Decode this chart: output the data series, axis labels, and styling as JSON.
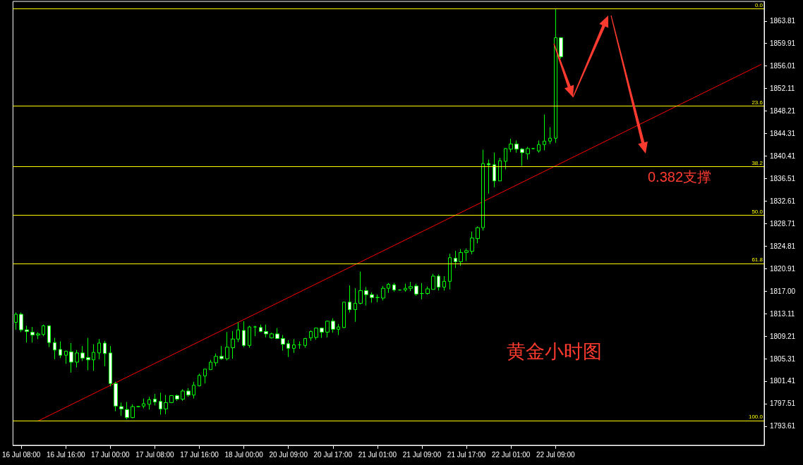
{
  "chart_data": {
    "type": "candlestick",
    "categories": [
      null,
      "16 Jul 08:00",
      null,
      null,
      null,
      null,
      null,
      null,
      null,
      "16 Jul 16:00",
      null,
      null,
      null,
      null,
      null,
      null,
      null,
      "17 Jul 00:00",
      null,
      null,
      null,
      null,
      null,
      null,
      null,
      "17 Jul 08:00",
      null,
      null,
      null,
      null,
      null,
      null,
      null,
      "17 Jul 16:00",
      null,
      null,
      null,
      null,
      null,
      null,
      null,
      "18 Jul 00:00",
      null,
      null,
      null,
      null,
      null,
      null,
      null,
      "20 Jul 09:00",
      null,
      null,
      null,
      null,
      null,
      null,
      null,
      "20 Jul 17:00",
      null,
      null,
      null,
      null,
      null,
      null,
      null,
      "21 Jul 01:00",
      null,
      null,
      null,
      null,
      null,
      null,
      null,
      "21 Jul 09:00",
      null,
      null,
      null,
      null,
      null,
      null,
      null,
      "21 Jul 17:00",
      null,
      null,
      null,
      null,
      null,
      null,
      null,
      "22 Jul 01:00",
      null,
      null,
      null,
      null,
      null,
      null,
      null,
      "22 Jul 09:00",
      null,
      null,
      null,
      null,
      null,
      null,
      null,
      null,
      null,
      null,
      null,
      null,
      null,
      null,
      null,
      null,
      null,
      null,
      null,
      null,
      null,
      null,
      null,
      null,
      null,
      null,
      null,
      null,
      null,
      null,
      null,
      null,
      null,
      null,
      null,
      null,
      null
    ],
    "series": [
      {
        "type": "candlestick",
        "color": "#00ff00",
        "ohlc": [
          [
            1811.6,
            1813.3,
            1810.3,
            1813.0
          ],
          [
            1813.0,
            1813.3,
            1809.9,
            1810.3
          ],
          [
            1810.3,
            1811.0,
            1808.1,
            1810.0
          ],
          [
            1809.9,
            1810.8,
            1808.1,
            1809.4
          ],
          [
            1809.4,
            1809.9,
            1808.7,
            1809.6
          ],
          [
            1809.5,
            1811.2,
            1809.2,
            1811.0
          ],
          [
            1811.0,
            1811.1,
            1807.3,
            1808.1
          ],
          [
            1808.1,
            1808.9,
            1805.2,
            1806.8
          ],
          [
            1806.9,
            1808.3,
            1805.4,
            1805.9
          ],
          [
            1805.9,
            1806.7,
            1804.4,
            1806.6
          ],
          [
            1806.5,
            1808.0,
            1802.9,
            1804.7
          ],
          [
            1804.7,
            1806.8,
            1803.8,
            1806.3
          ],
          [
            1806.3,
            1807.5,
            1804.9,
            1805.4
          ],
          [
            1805.5,
            1808.9,
            1803.3,
            1805.1
          ],
          [
            1805.1,
            1807.8,
            1803.2,
            1806.4
          ],
          [
            1806.3,
            1808.7,
            1805.2,
            1808.0
          ],
          [
            1808.0,
            1808.4,
            1804.0,
            1806.2
          ],
          [
            1806.3,
            1807.5,
            1800.5,
            1801.0
          ],
          [
            1801.0,
            1801.3,
            1796.2,
            1797.1
          ],
          [
            1797.0,
            1797.7,
            1795.4,
            1796.6
          ],
          [
            1796.5,
            1797.8,
            1794.8,
            1795.1
          ],
          [
            1795.1,
            1797.4,
            1795.0,
            1797.0
          ],
          [
            1797.0,
            1797.1,
            1796.9,
            1797.0
          ],
          [
            1797.1,
            1798.4,
            1796.7,
            1797.5
          ],
          [
            1797.4,
            1798.7,
            1796.5,
            1798.2
          ],
          [
            1798.3,
            1799.2,
            1797.2,
            1797.8
          ],
          [
            1797.9,
            1799.4,
            1795.6,
            1796.6
          ],
          [
            1796.6,
            1799.0,
            1795.7,
            1797.7
          ],
          [
            1797.7,
            1799.0,
            1797.6,
            1798.9
          ],
          [
            1798.9,
            1799.1,
            1798.0,
            1798.3
          ],
          [
            1798.3,
            1800.0,
            1798.0,
            1799.7
          ],
          [
            1799.7,
            1800.2,
            1798.7,
            1799.0
          ],
          [
            1799.0,
            1801.3,
            1798.4,
            1800.7
          ],
          [
            1800.6,
            1802.7,
            1800.5,
            1802.4
          ],
          [
            1802.3,
            1803.5,
            1801.0,
            1803.5
          ],
          [
            1803.4,
            1805.1,
            1803.4,
            1804.7
          ],
          [
            1804.6,
            1806.2,
            1804.0,
            1805.7
          ],
          [
            1805.7,
            1807.5,
            1805.1,
            1805.3
          ],
          [
            1805.3,
            1809.9,
            1805.0,
            1807.3
          ],
          [
            1807.2,
            1810.1,
            1805.3,
            1808.7
          ],
          [
            1808.7,
            1811.6,
            1808.2,
            1810.3
          ],
          [
            1810.2,
            1811.8,
            1807.3,
            1807.6
          ],
          [
            1807.6,
            1811.0,
            1807.2,
            1810.8
          ],
          [
            1810.8,
            1811.0,
            1809.2,
            1810.8
          ],
          [
            1810.7,
            1811.2,
            1809.9,
            1810.0
          ],
          [
            1810.0,
            1811.2,
            1809.0,
            1809.6
          ],
          [
            1808.9,
            1809.8,
            1808.8,
            1809.6
          ],
          [
            1809.6,
            1810.6,
            1808.7,
            1808.8
          ],
          [
            1808.8,
            1809.4,
            1806.7,
            1807.8
          ],
          [
            1807.9,
            1808.5,
            1805.6,
            1807.1
          ],
          [
            1807.1,
            1808.7,
            1806.3,
            1807.7
          ],
          [
            1807.7,
            1808.3,
            1807.0,
            1807.7
          ],
          [
            1807.6,
            1808.9,
            1807.2,
            1808.8
          ],
          [
            1808.9,
            1810.2,
            1808.4,
            1810.0
          ],
          [
            1809.0,
            1810.7,
            1808.6,
            1810.6
          ],
          [
            1810.6,
            1810.7,
            1808.9,
            1809.9
          ],
          [
            1809.9,
            1811.9,
            1809.0,
            1811.8
          ],
          [
            1811.8,
            1812.3,
            1809.8,
            1810.4
          ],
          [
            1810.4,
            1811.3,
            1809.4,
            1810.8
          ],
          [
            1810.7,
            1815.1,
            1810.6,
            1815.1
          ],
          [
            1815.1,
            1818.0,
            1813.3,
            1813.8
          ],
          [
            1813.8,
            1817.5,
            1811.7,
            1814.9
          ],
          [
            1814.9,
            1820.4,
            1814.7,
            1817.1
          ],
          [
            1817.1,
            1817.7,
            1814.5,
            1816.4
          ],
          [
            1816.4,
            1816.8,
            1815.0,
            1815.9
          ],
          [
            1815.9,
            1816.4,
            1815.1,
            1815.9
          ],
          [
            1815.8,
            1817.9,
            1815.4,
            1817.5
          ],
          [
            1817.5,
            1818.4,
            1816.7,
            1818.2
          ],
          [
            1818.1,
            1818.4,
            1816.9,
            1817.2
          ],
          [
            1817.2,
            1817.3,
            1817.1,
            1817.2
          ],
          [
            1817.2,
            1818.3,
            1816.9,
            1817.5
          ],
          [
            1817.5,
            1818.6,
            1817.0,
            1817.8
          ],
          [
            1817.9,
            1818.3,
            1816.2,
            1816.5
          ],
          [
            1816.6,
            1818.4,
            1815.6,
            1816.6
          ],
          [
            1816.6,
            1817.8,
            1816.4,
            1817.4
          ],
          [
            1817.3,
            1820.0,
            1817.3,
            1819.6
          ],
          [
            1819.6,
            1819.9,
            1817.1,
            1817.7
          ],
          [
            1817.7,
            1819.6,
            1817.1,
            1818.7
          ],
          [
            1818.7,
            1823.5,
            1817.3,
            1822.8
          ],
          [
            1822.7,
            1824.0,
            1821.0,
            1822.1
          ],
          [
            1822.1,
            1824.3,
            1821.4,
            1823.7
          ],
          [
            1823.7,
            1824.4,
            1822.2,
            1824.0
          ],
          [
            1823.9,
            1827.3,
            1823.4,
            1826.2
          ],
          [
            1826.1,
            1828.2,
            1825.3,
            1828.0
          ],
          [
            1828.0,
            1841.5,
            1827.5,
            1839.1
          ],
          [
            1839.1,
            1839.8,
            1833.9,
            1838.9
          ],
          [
            1838.9,
            1841.0,
            1835.0,
            1836.1
          ],
          [
            1836.1,
            1840.1,
            1836.1,
            1839.6
          ],
          [
            1839.5,
            1841.8,
            1838.1,
            1841.7
          ],
          [
            1841.6,
            1843.4,
            1841.1,
            1842.5
          ],
          [
            1842.5,
            1843.1,
            1841.0,
            1841.6
          ],
          [
            1841.6,
            1841.8,
            1838.7,
            1841.0
          ],
          [
            1840.8,
            1842.0,
            1839.8,
            1841.7
          ],
          [
            1841.7,
            1841.8,
            1841.6,
            1841.7
          ],
          [
            1841.3,
            1843.1,
            1841.0,
            1842.4
          ],
          [
            1842.4,
            1847.6,
            1841.4,
            1843.0
          ],
          [
            1843.0,
            1845.4,
            1842.5,
            1843.5
          ],
          [
            1843.5,
            1865.9,
            1842.7,
            1860.9
          ],
          [
            1860.9,
            1861.0,
            1857.3,
            1857.6
          ],
          null,
          null,
          null,
          null,
          null,
          null,
          null,
          null,
          null,
          null,
          null,
          null,
          null,
          null,
          null,
          null,
          null,
          null,
          null,
          null,
          null,
          null,
          null,
          null,
          null,
          null,
          null,
          null,
          null,
          null,
          null,
          null,
          null,
          null,
          null,
          null
        ]
      },
      {
        "type": "line",
        "color": "#ff0000",
        "values": [
          null,
          null,
          null,
          null,
          1794.5,
          null,
          null,
          null,
          null,
          null,
          null,
          null,
          null,
          null,
          null,
          null,
          null,
          null,
          null,
          null,
          null,
          null,
          null,
          null,
          null,
          null,
          null,
          null,
          null,
          null,
          null,
          null,
          null,
          null,
          null,
          null,
          null,
          null,
          null,
          null,
          null,
          null,
          null,
          null,
          null,
          null,
          null,
          null,
          null,
          null,
          null,
          null,
          null,
          null,
          null,
          null,
          null,
          null,
          null,
          null,
          null,
          null,
          null,
          null,
          null,
          null,
          null,
          null,
          null,
          null,
          null,
          null,
          null,
          null,
          null,
          null,
          null,
          null,
          null,
          null,
          null,
          null,
          null,
          null,
          null,
          null,
          null,
          null,
          null,
          null,
          null,
          null,
          null,
          null,
          null,
          null,
          null,
          null,
          null,
          null,
          null,
          null,
          null,
          null,
          null,
          null,
          null,
          null,
          null,
          null,
          null,
          null,
          null,
          null,
          null,
          null,
          null,
          null,
          null,
          null,
          null,
          null,
          null,
          null,
          null,
          null,
          null,
          null,
          null,
          null,
          null,
          null,
          null,
          null,
          1856.3
        ]
      }
    ],
    "ylim": [
      1790.3,
      1867.2
    ],
    "yticks": [
      1793.61,
      1797.51,
      1801.41,
      1805.31,
      1809.21,
      1813.11,
      {
        "value": 1817,
        "label": "1817.00"
      },
      1820.91,
      1824.81,
      1828.71,
      1832.61,
      1836.51,
      1840.41,
      1844.31,
      1848.21,
      1852.11,
      1856.01,
      1859.91,
      1863.81
    ],
    "ref_lines": [
      {
        "axis": "y",
        "value": 1865.9,
        "color": "#ffff00"
      },
      {
        "axis": "y",
        "value": 1849.1,
        "color": "#ffff00"
      },
      {
        "axis": "y",
        "value": 1838.6,
        "color": "#ffff00"
      },
      {
        "axis": "y",
        "value": 1830.2,
        "color": "#ffff00"
      },
      {
        "axis": "y",
        "value": 1821.8,
        "color": "#ffff00"
      },
      {
        "axis": "y",
        "value": 1794.6,
        "color": "#ffff00"
      }
    ],
    "annotations": [
      "0.382支撑",
      "黄金小时图",
      {
        "text": "0.0",
        "y": 1865.9
      },
      {
        "text": "23.6",
        "y": 1849.1
      },
      {
        "text": "38.2",
        "y": 1838.6
      },
      {
        "text": "50.0",
        "y": 1830.2
      },
      {
        "text": "61.8",
        "y": 1821.8
      },
      {
        "text": "100.0",
        "y": 1794.6
      }
    ],
    "grid": false
  }
}
